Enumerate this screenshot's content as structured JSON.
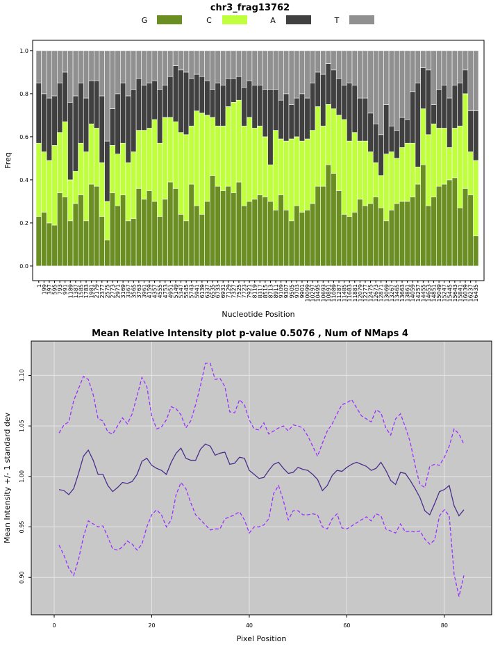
{
  "chart_data": [
    {
      "type": "bar",
      "stacked": true,
      "title": "chr3_frag13762",
      "xlabel": "Nucleotide Position",
      "ylabel": "Freq",
      "categories": [
        "1",
        "199",
        "397",
        "595",
        "793",
        "991",
        "1189",
        "1387",
        "1585",
        "1783",
        "1981",
        "2179",
        "2377",
        "2575",
        "2773",
        "2971",
        "3169",
        "3367",
        "3565",
        "3763",
        "3961",
        "4159",
        "4357",
        "4555",
        "4753",
        "4951",
        "5149",
        "5347",
        "5545",
        "5743",
        "5941",
        "6139",
        "6337",
        "6535",
        "6733",
        "6931",
        "7129",
        "7327",
        "7525",
        "7723",
        "7921",
        "8119",
        "8317",
        "8515",
        "8713",
        "8911",
        "9109",
        "9307",
        "9505",
        "9703",
        "9901",
        "10099",
        "10297",
        "10495",
        "10693",
        "10891",
        "11089",
        "11287",
        "11485",
        "11683",
        "11881",
        "12079",
        "12277",
        "12475",
        "12673",
        "12871",
        "13069",
        "13267",
        "13465",
        "13663",
        "13861",
        "14059",
        "14257",
        "14455",
        "14653",
        "14851",
        "15049",
        "15247",
        "15445",
        "15643",
        "15841",
        "16039",
        "16237",
        "16435"
      ],
      "series": [
        {
          "name": "G",
          "color": "#6b8e23",
          "values": [
            0.23,
            0.25,
            0.2,
            0.19,
            0.34,
            0.32,
            0.21,
            0.29,
            0.33,
            0.21,
            0.38,
            0.37,
            0.23,
            0.12,
            0.34,
            0.28,
            0.33,
            0.21,
            0.22,
            0.36,
            0.31,
            0.35,
            0.3,
            0.23,
            0.31,
            0.39,
            0.36,
            0.24,
            0.21,
            0.38,
            0.28,
            0.24,
            0.3,
            0.42,
            0.37,
            0.35,
            0.37,
            0.34,
            0.39,
            0.28,
            0.3,
            0.31,
            0.33,
            0.32,
            0.3,
            0.26,
            0.33,
            0.26,
            0.21,
            0.28,
            0.25,
            0.26,
            0.29,
            0.37,
            0.37,
            0.47,
            0.43,
            0.35,
            0.24,
            0.23,
            0.25,
            0.31,
            0.28,
            0.29,
            0.32,
            0.27,
            0.21,
            0.26,
            0.29,
            0.3,
            0.3,
            0.32,
            0.38,
            0.47,
            0.28,
            0.32,
            0.37,
            0.38,
            0.4,
            0.41,
            0.27,
            0.36,
            0.33,
            0.14
          ]
        },
        {
          "name": "C",
          "color": "#c0ff3e",
          "values": [
            0.34,
            0.28,
            0.29,
            0.37,
            0.28,
            0.35,
            0.19,
            0.15,
            0.24,
            0.32,
            0.28,
            0.27,
            0.25,
            0.18,
            0.22,
            0.24,
            0.24,
            0.27,
            0.31,
            0.27,
            0.32,
            0.29,
            0.38,
            0.34,
            0.38,
            0.3,
            0.31,
            0.38,
            0.4,
            0.27,
            0.44,
            0.47,
            0.4,
            0.27,
            0.28,
            0.3,
            0.37,
            0.42,
            0.38,
            0.37,
            0.39,
            0.33,
            0.32,
            0.28,
            0.17,
            0.37,
            0.26,
            0.32,
            0.38,
            0.32,
            0.33,
            0.33,
            0.34,
            0.37,
            0.28,
            0.28,
            0.3,
            0.35,
            0.44,
            0.35,
            0.37,
            0.27,
            0.3,
            0.24,
            0.16,
            0.15,
            0.31,
            0.27,
            0.21,
            0.25,
            0.27,
            0.25,
            0.08,
            0.26,
            0.33,
            0.34,
            0.27,
            0.26,
            0.15,
            0.23,
            0.38,
            0.44,
            0.2,
            0.35
          ]
        },
        {
          "name": "A",
          "color": "#404040",
          "values": [
            0.28,
            0.27,
            0.29,
            0.23,
            0.23,
            0.23,
            0.36,
            0.35,
            0.28,
            0.25,
            0.2,
            0.22,
            0.31,
            0.28,
            0.17,
            0.28,
            0.28,
            0.31,
            0.29,
            0.24,
            0.21,
            0.21,
            0.18,
            0.25,
            0.15,
            0.19,
            0.26,
            0.29,
            0.29,
            0.22,
            0.17,
            0.17,
            0.16,
            0.13,
            0.2,
            0.19,
            0.13,
            0.11,
            0.11,
            0.18,
            0.17,
            0.2,
            0.19,
            0.22,
            0.35,
            0.19,
            0.18,
            0.22,
            0.16,
            0.18,
            0.22,
            0.19,
            0.22,
            0.16,
            0.24,
            0.19,
            0.18,
            0.17,
            0.16,
            0.27,
            0.22,
            0.2,
            0.2,
            0.18,
            0.18,
            0.19,
            0.23,
            0.12,
            0.13,
            0.14,
            0.11,
            0.24,
            0.39,
            0.19,
            0.3,
            0.09,
            0.18,
            0.2,
            0.23,
            0.2,
            0.2,
            0.11,
            0.19,
            0.23
          ]
        },
        {
          "name": "T",
          "color": "#909090",
          "values": [
            0.15,
            0.2,
            0.22,
            0.21,
            0.15,
            0.1,
            0.24,
            0.21,
            0.15,
            0.22,
            0.14,
            0.14,
            0.21,
            0.42,
            0.27,
            0.2,
            0.15,
            0.21,
            0.18,
            0.13,
            0.16,
            0.15,
            0.14,
            0.18,
            0.16,
            0.12,
            0.07,
            0.09,
            0.1,
            0.13,
            0.11,
            0.12,
            0.14,
            0.18,
            0.15,
            0.16,
            0.13,
            0.13,
            0.12,
            0.17,
            0.14,
            0.16,
            0.16,
            0.18,
            0.18,
            0.18,
            0.23,
            0.2,
            0.25,
            0.22,
            0.2,
            0.22,
            0.15,
            0.1,
            0.11,
            0.06,
            0.09,
            0.13,
            0.16,
            0.15,
            0.16,
            0.22,
            0.22,
            0.29,
            0.34,
            0.39,
            0.25,
            0.35,
            0.37,
            0.31,
            0.32,
            0.19,
            0.15,
            0.08,
            0.09,
            0.25,
            0.18,
            0.16,
            0.22,
            0.16,
            0.15,
            0.09,
            0.28,
            0.28
          ]
        }
      ],
      "ylim": [
        -0.068,
        1.048
      ],
      "yticks": [
        {
          "value": 0,
          "label": "0.0"
        },
        {
          "value": 0.2,
          "label": "0.2"
        },
        {
          "value": 0.4,
          "label": "0.4"
        },
        {
          "value": 0.6,
          "label": "0.6"
        },
        {
          "value": 0.8,
          "label": "0.8"
        },
        {
          "value": 1,
          "label": "1.0"
        }
      ],
      "legend": "top"
    },
    {
      "type": "line",
      "title": "Mean Relative Intensity plot p-value 0.5076 , Num of NMaps 4",
      "xlabel": "Pixel Position",
      "ylabel": "Mean Intensity +/- 1 standard dev",
      "x": [
        1,
        2,
        3,
        4,
        5,
        6,
        7,
        8,
        9,
        10,
        11,
        12,
        13,
        14,
        15,
        16,
        17,
        18,
        19,
        20,
        21,
        22,
        23,
        24,
        25,
        26,
        27,
        28,
        29,
        30,
        31,
        32,
        33,
        34,
        35,
        36,
        37,
        38,
        39,
        40,
        41,
        42,
        43,
        44,
        45,
        46,
        47,
        48,
        49,
        50,
        51,
        52,
        53,
        54,
        55,
        56,
        57,
        58,
        59,
        60,
        61,
        62,
        63,
        64,
        65,
        66,
        67,
        68,
        69,
        70,
        71,
        72,
        73,
        74,
        75,
        76,
        77,
        78,
        79,
        80,
        81,
        82,
        83,
        84
      ],
      "series": [
        {
          "color": "#4b2d8c",
          "dashed": false,
          "values": [
            0.987,
            0.986,
            0.982,
            0.988,
            1.003,
            1.02,
            1.026,
            1.016,
            1.002,
            1.002,
            0.991,
            0.985,
            0.989,
            0.994,
            0.993,
            0.995,
            1.002,
            1.015,
            1.018,
            1.011,
            1.008,
            1.006,
            1.002,
            1.014,
            1.023,
            1.028,
            1.018,
            1.016,
            1.016,
            1.027,
            1.032,
            1.03,
            1.021,
            1.023,
            1.024,
            1.012,
            1.013,
            1.019,
            1.018,
            1.006,
            1.002,
            0.998,
            0.999,
            1.006,
            1.012,
            1.014,
            1.008,
            1.003,
            1.004,
            1.009,
            1.007,
            1.006,
            1.002,
            0.997,
            0.986,
            0.991,
            1.001,
            1.006,
            1.005,
            1.009,
            1.012,
            1.014,
            1.012,
            1.01,
            1.006,
            1.008,
            1.014,
            1.006,
            0.996,
            0.992,
            1.004,
            1.003,
            0.996,
            0.988,
            0.979,
            0.966,
            0.962,
            0.973,
            0.985,
            0.987,
            0.991,
            0.971,
            0.961,
            0.967
          ]
        },
        {
          "color": "#9b30ff",
          "dashed": true,
          "values": [
            1.043,
            1.051,
            1.054,
            1.075,
            1.087,
            1.099,
            1.096,
            1.081,
            1.057,
            1.055,
            1.044,
            1.042,
            1.05,
            1.058,
            1.052,
            1.062,
            1.08,
            1.098,
            1.089,
            1.06,
            1.047,
            1.049,
            1.056,
            1.069,
            1.067,
            1.061,
            1.048,
            1.055,
            1.071,
            1.09,
            1.112,
            1.112,
            1.096,
            1.097,
            1.089,
            1.064,
            1.063,
            1.076,
            1.071,
            1.056,
            1.047,
            1.046,
            1.053,
            1.042,
            1.045,
            1.048,
            1.05,
            1.045,
            1.051,
            1.05,
            1.048,
            1.04,
            1.03,
            1.02,
            1.033,
            1.045,
            1.052,
            1.062,
            1.071,
            1.073,
            1.076,
            1.068,
            1.06,
            1.057,
            1.054,
            1.066,
            1.063,
            1.048,
            1.041,
            1.057,
            1.062,
            1.049,
            1.034,
            1.011,
            0.992,
            0.989,
            1.01,
            1.012,
            1.011,
            1.019,
            1.03,
            1.047,
            1.042,
            1.032
          ]
        },
        {
          "color": "#9b30ff",
          "dashed": true,
          "values": [
            0.932,
            0.922,
            0.909,
            0.902,
            0.918,
            0.94,
            0.956,
            0.953,
            0.95,
            0.951,
            0.94,
            0.928,
            0.927,
            0.93,
            0.936,
            0.933,
            0.927,
            0.933,
            0.95,
            0.962,
            0.967,
            0.962,
            0.95,
            0.957,
            0.982,
            0.994,
            0.988,
            0.974,
            0.962,
            0.957,
            0.952,
            0.947,
            0.948,
            0.948,
            0.958,
            0.96,
            0.962,
            0.965,
            0.957,
            0.944,
            0.95,
            0.95,
            0.952,
            0.958,
            0.983,
            0.991,
            0.976,
            0.957,
            0.966,
            0.966,
            0.962,
            0.962,
            0.963,
            0.962,
            0.95,
            0.948,
            0.958,
            0.963,
            0.949,
            0.948,
            0.951,
            0.954,
            0.957,
            0.96,
            0.956,
            0.963,
            0.961,
            0.948,
            0.946,
            0.944,
            0.953,
            0.945,
            0.946,
            0.945,
            0.946,
            0.938,
            0.933,
            0.937,
            0.961,
            0.967,
            0.961,
            0.903,
            0.881,
            0.902
          ]
        }
      ],
      "xlim": [
        -4.7,
        89.7
      ],
      "ylim": [
        0.863,
        1.134
      ],
      "xticks": [
        0,
        20,
        40,
        60,
        80
      ],
      "yticks": [
        {
          "value": 0.9,
          "label": "0.90"
        },
        {
          "value": 0.95,
          "label": "0.95"
        },
        {
          "value": 1,
          "label": "1.00"
        },
        {
          "value": 1.05,
          "label": "1.05"
        },
        {
          "value": 1.1,
          "label": "1.10"
        }
      ],
      "grid": true,
      "background": "#c8c8c8"
    }
  ]
}
